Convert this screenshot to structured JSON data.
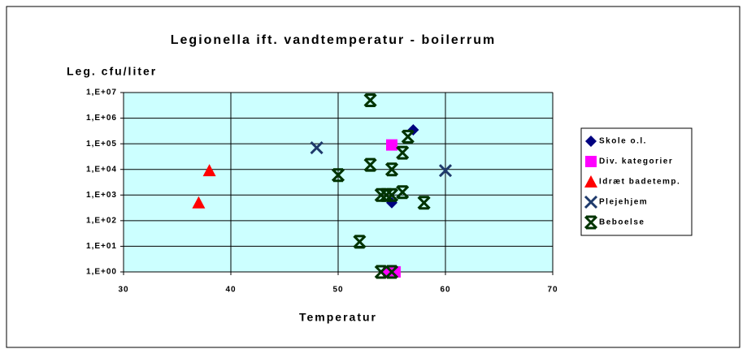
{
  "chart_data": {
    "type": "scatter",
    "title": "Legionella ift. vandtemperatur - boilerrum",
    "x_label": "Temperatur",
    "y_label": "Leg. cfu/liter",
    "xlim": [
      30,
      70
    ],
    "xticks": [
      30,
      40,
      50,
      60,
      70
    ],
    "ylim": [
      1,
      10000000
    ],
    "log_y": true,
    "grid": true,
    "plot_background": "#ccffff",
    "yticks": [
      {
        "value": 1,
        "label": "1,E+00"
      },
      {
        "value": 10,
        "label": "1,E+01"
      },
      {
        "value": 100,
        "label": "1,E+02"
      },
      {
        "value": 1000,
        "label": "1,E+03"
      },
      {
        "value": 10000,
        "label": "1,E+04"
      },
      {
        "value": 100000,
        "label": "1,E+05"
      },
      {
        "value": 1000000,
        "label": "1,E+06"
      },
      {
        "value": 10000000,
        "label": "1,E+07"
      }
    ],
    "legend": "right",
    "series": [
      {
        "name": "Skole o.l.",
        "color": "#000080",
        "marker": "diamond",
        "x": [
          57,
          55
        ],
        "values": [
          350000,
          500
        ]
      },
      {
        "name": "Div. kategorier",
        "color": "#ff00ff",
        "marker": "square",
        "x": [
          55,
          54.7,
          55.3
        ],
        "values": [
          90000,
          1,
          1
        ]
      },
      {
        "name": "Idræt badetemp.",
        "color": "#ff0000",
        "marker": "triangle",
        "x": [
          38,
          37
        ],
        "values": [
          9000,
          500
        ]
      },
      {
        "name": "Plejehjem",
        "color": "#1f3a6b",
        "marker": "x",
        "x": [
          48,
          60
        ],
        "values": [
          70000,
          9000
        ]
      },
      {
        "name": "Beboelse",
        "color": "#003300",
        "marker": "star",
        "x": [
          53,
          56.5,
          56,
          53,
          55,
          50,
          56,
          54,
          54.5,
          55,
          58,
          52,
          54,
          55
        ],
        "values": [
          5000000,
          190000,
          45000,
          15000,
          10000,
          6000,
          1300,
          1000,
          1000,
          1000,
          500,
          15,
          1,
          1
        ]
      }
    ]
  }
}
